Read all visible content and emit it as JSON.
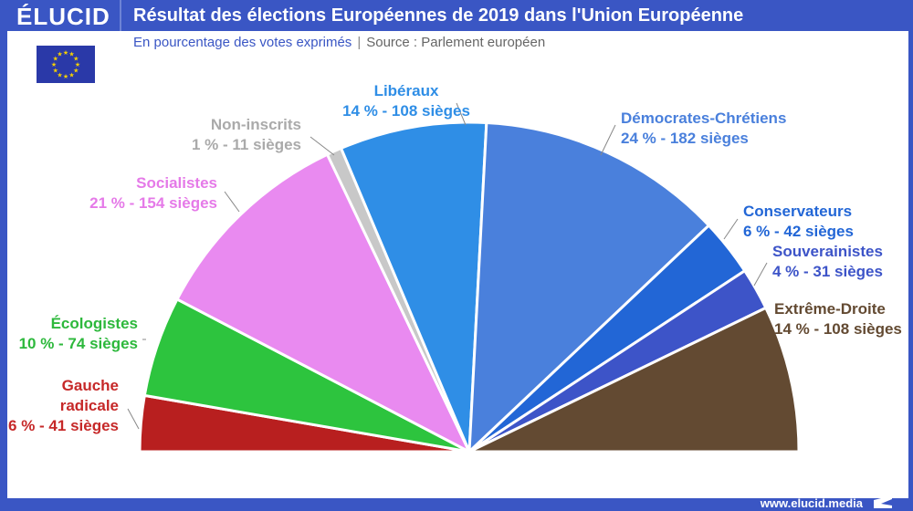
{
  "brand": "ÉLUCID",
  "title": "Résultat des élections Européennes de 2019 dans l'Union Européenne",
  "subtitle": "En pourcentage des votes exprimés",
  "source": "Source : Parlement européen",
  "footer": "www.elucid.media",
  "colors": {
    "frame": "#3a56c4"
  },
  "chart_data": {
    "type": "pie",
    "shape": "semicircle",
    "categories": [
      "Gauche radicale",
      "Écologistes",
      "Socialistes",
      "Non-inscrits",
      "Libéraux",
      "Démocrates-Chrétiens",
      "Conservateurs",
      "Souverainistes",
      "Extrême-Droite"
    ],
    "percent": [
      6,
      10,
      21,
      1,
      14,
      24,
      6,
      4,
      14
    ],
    "seats": [
      41,
      74,
      154,
      11,
      108,
      182,
      42,
      31,
      108
    ],
    "labels": [
      {
        "name": "Gauche radicale",
        "line1": "Gauche",
        "line2": "radicale",
        "value": "6 % - 41 sièges"
      },
      {
        "name": "Écologistes",
        "value": "10 % - 74 sièges"
      },
      {
        "name": "Socialistes",
        "value": "21 % - 154 sièges"
      },
      {
        "name": "Non-inscrits",
        "value": "1 % - 11 sièges"
      },
      {
        "name": "Libéraux",
        "value": "14 % - 108 sièges"
      },
      {
        "name": "Démocrates-Chrétiens",
        "value": "24 % - 182 sièges"
      },
      {
        "name": "Conservateurs",
        "value": "6 % - 42 sièges"
      },
      {
        "name": "Souverainistes",
        "value": "4 % - 31 sièges"
      },
      {
        "name": "Extrême-Droite",
        "value": "14 % - 108 sièges"
      }
    ],
    "colors": [
      "#b81f1f",
      "#2dc43e",
      "#e98af0",
      "#c8c8c8",
      "#2f8ee6",
      "#4a80dc",
      "#2266d6",
      "#3d54c8",
      "#634a32"
    ],
    "label_colors": [
      "#c62828",
      "#2db83c",
      "#e57ae8",
      "#aaaaaa",
      "#2f8ee6",
      "#4a80dc",
      "#2266d6",
      "#3d54c8",
      "#634a32"
    ]
  }
}
